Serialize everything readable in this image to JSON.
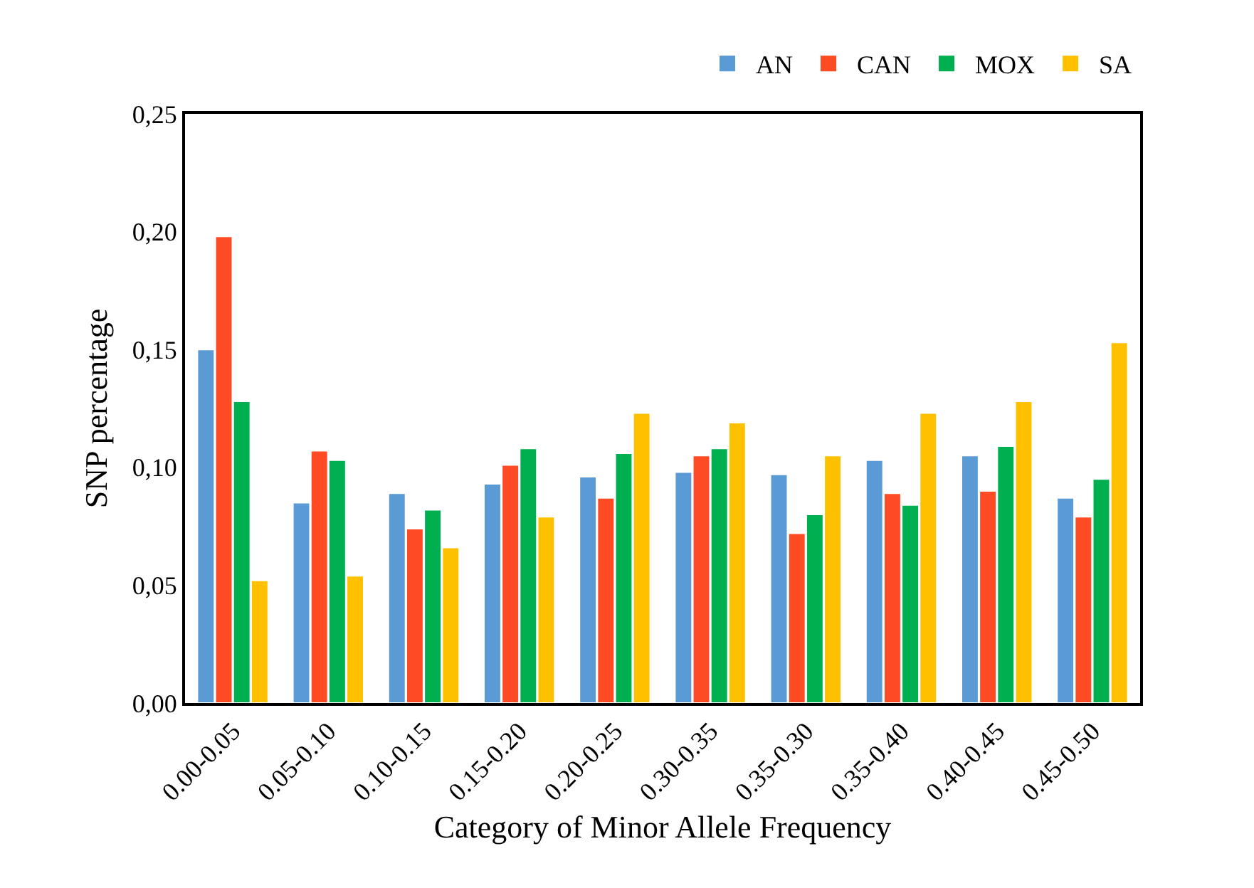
{
  "chart_data": {
    "type": "bar",
    "xlabel": "Category of Minor Allele Frequency",
    "ylabel": "SNP percentage",
    "categories": [
      "0.00-0.05",
      "0.05-0.10",
      "0.10-0.15",
      "0.15-0.20",
      "0.20-0.25",
      "0.30-0.35",
      "0.35-0.30",
      "0.35-0.40",
      "0.40-0.45",
      "0.45-0.50"
    ],
    "series": [
      {
        "name": "AN",
        "color": "#5b9bd5",
        "values": [
          0.15,
          0.085,
          0.089,
          0.093,
          0.096,
          0.098,
          0.097,
          0.103,
          0.105,
          0.087
        ]
      },
      {
        "name": "CAN",
        "color": "#ff4b23",
        "values": [
          0.198,
          0.107,
          0.074,
          0.101,
          0.087,
          0.105,
          0.072,
          0.089,
          0.09,
          0.079
        ]
      },
      {
        "name": "MOX",
        "color": "#00b050",
        "values": [
          0.128,
          0.103,
          0.082,
          0.108,
          0.106,
          0.108,
          0.08,
          0.084,
          0.109,
          0.095
        ]
      },
      {
        "name": "SA",
        "color": "#ffc000",
        "values": [
          0.052,
          0.054,
          0.066,
          0.079,
          0.123,
          0.119,
          0.105,
          0.123,
          0.128,
          0.153
        ]
      }
    ],
    "ylim": [
      0,
      0.25
    ],
    "yticks": [
      {
        "value": 0,
        "label": "0,00"
      },
      {
        "value": 0.05,
        "label": "0,05"
      },
      {
        "value": 0.1,
        "label": "0,10"
      },
      {
        "value": 0.15,
        "label": "0,15"
      },
      {
        "value": 0.2,
        "label": "0,20"
      },
      {
        "value": 0.25,
        "label": "0,25"
      }
    ],
    "grid": false,
    "legend": "top right"
  }
}
